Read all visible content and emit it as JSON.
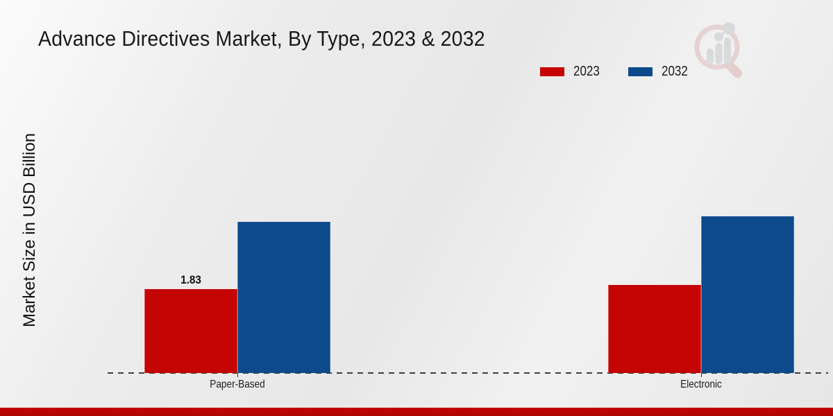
{
  "chart_data": {
    "type": "bar",
    "title": "Advance Directives Market, By Type, 2023 & 2032",
    "ylabel": "Market Size in USD Billion",
    "xlabel": "",
    "categories": [
      "Paper-Based",
      "Electronic"
    ],
    "series": [
      {
        "name": "2023",
        "color": "#c50404",
        "values": [
          1.83,
          1.92
        ]
      },
      {
        "name": "2032",
        "color": "#0d4a8c",
        "values": [
          3.3,
          3.43
        ]
      }
    ],
    "bar_labels": [
      {
        "series_index": 0,
        "category_index": 0,
        "text": "1.83"
      }
    ],
    "ylim": [
      0,
      4.2
    ],
    "grid": false,
    "legend_position": "top-right",
    "axis_line_style": "dashed",
    "units": "USD Billion"
  },
  "colors": {
    "series_2023_red": "#c50404",
    "series_2032_blue": "#0d4a8c",
    "footer_bar_red": "#c30505",
    "baseline_gray": "#3c3c3c",
    "background_gray": "#e8e8e8",
    "title_text": "#191919"
  },
  "icons": {
    "brand_logo": "magnifier-bar-chart-icon"
  }
}
